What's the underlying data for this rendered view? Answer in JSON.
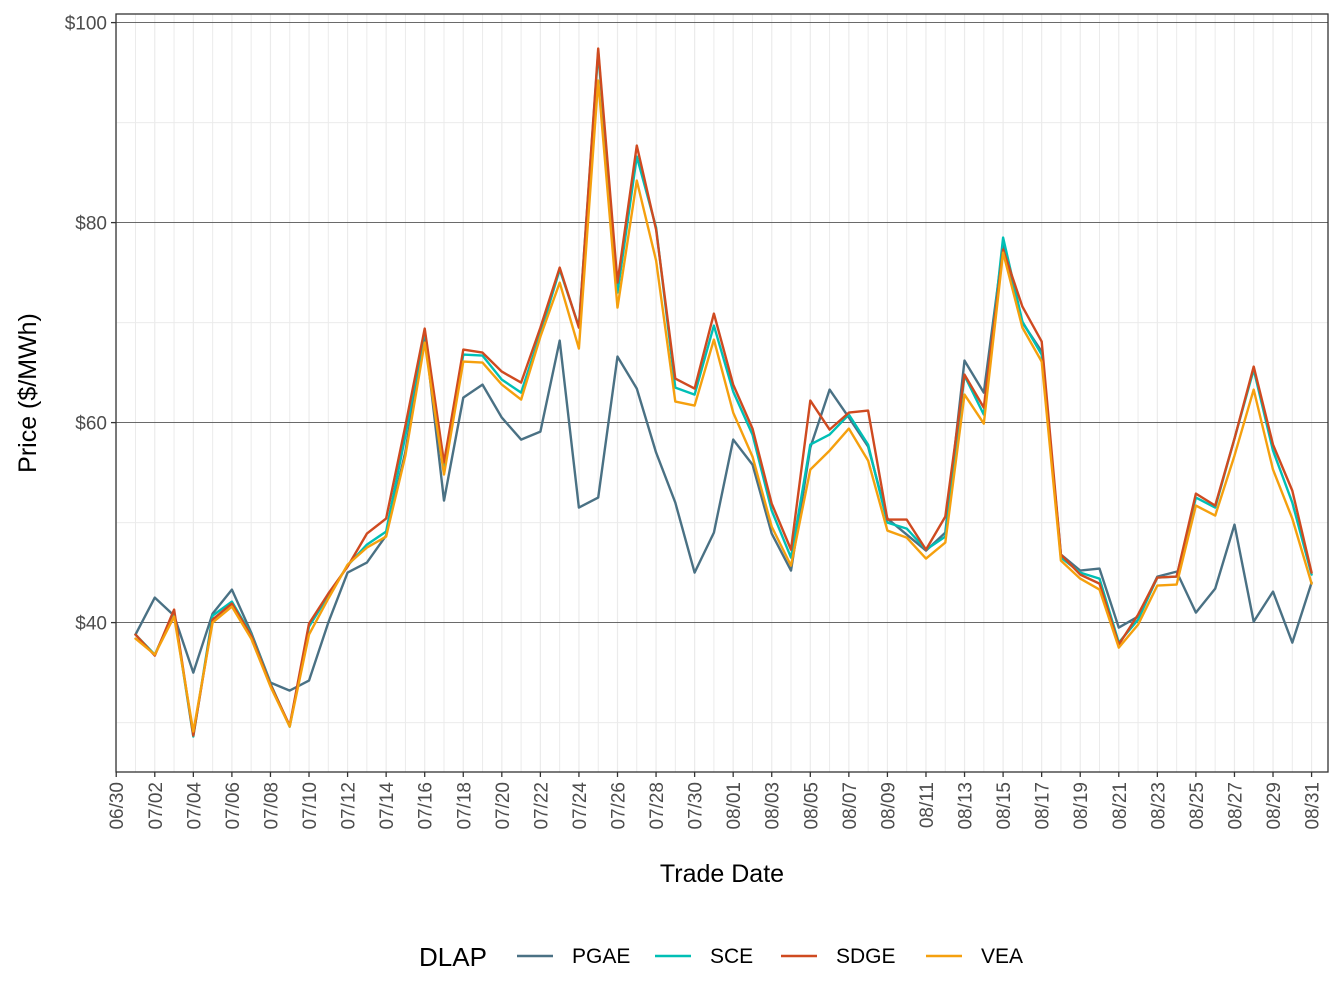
{
  "chart_data": {
    "type": "line",
    "xlabel": "Trade Date",
    "ylabel": "Price ($/MWh)",
    "ylim": [
      25,
      100.5
    ],
    "y_major_ticks": [
      40,
      60,
      80,
      100
    ],
    "y_tick_labels": [
      "$40",
      "$60",
      "$80",
      "$100"
    ],
    "y_minor_ticks": [
      30,
      50,
      70,
      90
    ],
    "x_tick_labels": [
      "06/30",
      "07/02",
      "07/04",
      "07/06",
      "07/08",
      "07/10",
      "07/12",
      "07/14",
      "07/16",
      "07/18",
      "07/20",
      "07/22",
      "07/24",
      "07/26",
      "07/28",
      "07/30",
      "08/01",
      "08/03",
      "08/05",
      "08/07",
      "08/09",
      "08/11",
      "08/13",
      "08/15",
      "08/17",
      "08/19",
      "08/21",
      "08/23",
      "08/25",
      "08/27",
      "08/29",
      "08/31"
    ],
    "grid": true,
    "legend": {
      "title": "DLAP",
      "position": "bottom"
    },
    "x": [
      "07/01",
      "07/02",
      "07/03",
      "07/04",
      "07/05",
      "07/06",
      "07/07",
      "07/08",
      "07/09",
      "07/10",
      "07/11",
      "07/12",
      "07/13",
      "07/14",
      "07/15",
      "07/16",
      "07/17",
      "07/18",
      "07/19",
      "07/20",
      "07/21",
      "07/22",
      "07/23",
      "07/24",
      "07/25",
      "07/26",
      "07/27",
      "07/28",
      "07/29",
      "07/30",
      "07/31",
      "08/01",
      "08/02",
      "08/03",
      "08/04",
      "08/05",
      "08/06",
      "08/07",
      "08/08",
      "08/09",
      "08/10",
      "08/11",
      "08/12",
      "08/13",
      "08/14",
      "08/15",
      "08/16",
      "08/17",
      "08/18",
      "08/19",
      "08/20",
      "08/21",
      "08/22",
      "08/23",
      "08/24",
      "08/25",
      "08/26",
      "08/27",
      "08/28",
      "08/29",
      "08/30",
      "08/31"
    ],
    "series": [
      {
        "name": "PGAE",
        "color": "#4a7184",
        "values": [
          38.8,
          42.5,
          40.7,
          35.0,
          40.9,
          43.3,
          39.0,
          34.0,
          33.2,
          34.2,
          40.0,
          45.0,
          46.0,
          48.7,
          57.1,
          69.0,
          52.2,
          62.5,
          63.8,
          60.5,
          58.3,
          59.1,
          68.2,
          51.5,
          52.5,
          66.6,
          63.4,
          57.0,
          52.0,
          45.0,
          49.0,
          58.3,
          55.8,
          48.9,
          45.2,
          57.5,
          63.3,
          60.5,
          57.6,
          50.4,
          48.8,
          47.2,
          49.0,
          66.2,
          63.0,
          77.7,
          70.0,
          67.1,
          46.8,
          45.2,
          45.4,
          39.5,
          40.6,
          44.6,
          45.1,
          41.0,
          43.4,
          49.8,
          40.1,
          43.1,
          38.0,
          44.0
        ]
      },
      {
        "name": "SCE",
        "color": "#00bfb5",
        "values": [
          38.8,
          36.8,
          41.0,
          28.6,
          40.7,
          42.1,
          38.8,
          33.9,
          29.6,
          39.6,
          42.7,
          45.7,
          47.8,
          49.1,
          58.7,
          69.2,
          55.5,
          66.8,
          66.7,
          64.3,
          63.0,
          68.9,
          75.3,
          69.6,
          97.1,
          73.0,
          86.6,
          79.5,
          63.5,
          62.8,
          69.7,
          63.1,
          58.8,
          51.2,
          46.5,
          57.8,
          58.8,
          60.8,
          57.8,
          50.0,
          49.4,
          47.3,
          48.6,
          64.7,
          60.8,
          78.5,
          70.1,
          66.8,
          46.5,
          45.0,
          44.4,
          38.0,
          40.3,
          44.5,
          44.6,
          52.5,
          51.5,
          58.4,
          65.3,
          57.2,
          52.0,
          44.8
        ]
      },
      {
        "name": "SDGE",
        "color": "#cf4a20",
        "values": [
          38.8,
          36.7,
          41.3,
          28.7,
          40.3,
          41.9,
          38.7,
          33.8,
          29.7,
          39.9,
          42.9,
          45.6,
          48.9,
          50.4,
          59.7,
          69.4,
          56.0,
          67.3,
          67.0,
          65.1,
          64.0,
          69.5,
          75.5,
          69.5,
          97.4,
          74.0,
          87.7,
          79.3,
          64.4,
          63.4,
          70.9,
          63.8,
          59.4,
          51.9,
          47.3,
          62.2,
          59.3,
          61.0,
          61.2,
          50.3,
          50.3,
          47.3,
          50.6,
          64.8,
          61.5,
          77.3,
          71.6,
          68.1,
          46.8,
          44.8,
          43.9,
          37.8,
          40.8,
          44.5,
          44.6,
          52.9,
          51.7,
          58.4,
          65.6,
          57.8,
          53.2,
          45.0
        ]
      },
      {
        "name": "VEA",
        "color": "#f5a00e",
        "values": [
          38.4,
          36.8,
          40.6,
          29.1,
          40.0,
          41.6,
          38.4,
          33.6,
          29.6,
          38.8,
          42.4,
          45.8,
          47.5,
          48.6,
          56.7,
          68.0,
          54.8,
          66.1,
          66.0,
          63.8,
          62.3,
          68.6,
          74.0,
          67.4,
          94.2,
          71.5,
          84.2,
          76.2,
          62.1,
          61.7,
          68.3,
          61.0,
          56.6,
          49.6,
          45.7,
          55.3,
          57.2,
          59.4,
          56.2,
          49.2,
          48.5,
          46.4,
          48.0,
          62.8,
          59.9,
          77.0,
          69.5,
          66.1,
          46.2,
          44.4,
          43.3,
          37.5,
          39.8,
          43.7,
          43.8,
          51.7,
          50.7,
          56.7,
          63.3,
          55.3,
          50.4,
          43.9
        ]
      }
    ]
  }
}
